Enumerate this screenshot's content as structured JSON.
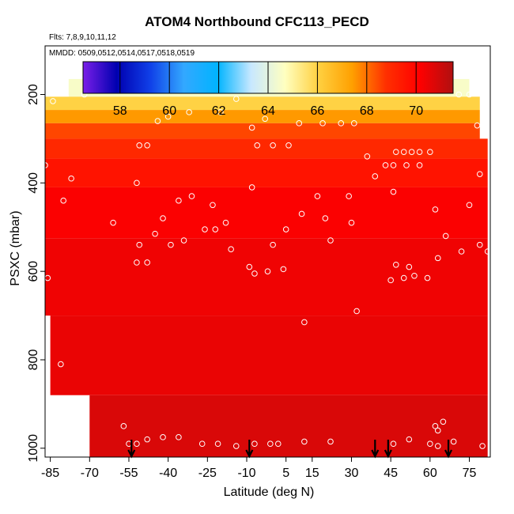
{
  "chart_data": {
    "type": "heatmap",
    "title": "ATOM4 Northbound CFC113_PECD",
    "subtitle_flights": "Flts: 7,8,9,10,11,12",
    "subtitle_dates": "MMDD: 0509,0512,0514,0517,0518,0519",
    "xlabel": "Latitude (deg N)",
    "ylabel": "PSXC (mbar)",
    "x_ticks": [
      -85,
      -70,
      -55,
      -40,
      -25,
      -10,
      5,
      15,
      30,
      45,
      60,
      75
    ],
    "y_ticks": [
      200,
      400,
      600,
      800,
      1000
    ],
    "xlim": [
      -87,
      83
    ],
    "ylim": [
      1020,
      90
    ],
    "colorbar": {
      "ticks": [
        58,
        60,
        62,
        64,
        66,
        68,
        70
      ],
      "range": [
        56.5,
        71.5
      ],
      "colors": [
        "#7a1fe8",
        "#0000b0",
        "#1040e8",
        "#33a8ff",
        "#00b4ff",
        "#c8e8ff",
        "#ffffc0",
        "#ffd040",
        "#ffa000",
        "#ff3000",
        "#ff0000",
        "#b01010"
      ]
    },
    "field_levels": [
      {
        "p": 190,
        "value": 64.5,
        "lat_from": -78,
        "lat_to": 75
      },
      {
        "p": 220,
        "value": 66.0,
        "lat_from": -87,
        "lat_to": 79
      },
      {
        "p": 250,
        "value": 67.5,
        "lat_from": -87,
        "lat_to": 79
      },
      {
        "p": 280,
        "value": 68.5,
        "lat_from": -87,
        "lat_to": 79
      },
      {
        "p": 320,
        "value": 69.0,
        "lat_from": -87,
        "lat_to": 82
      },
      {
        "p": 370,
        "value": 69.6,
        "lat_from": -87,
        "lat_to": 82
      },
      {
        "p": 450,
        "value": 70.2,
        "lat_from": -87,
        "lat_to": 82
      },
      {
        "p": 600,
        "value": 70.4,
        "lat_from": -87,
        "lat_to": 82
      },
      {
        "p": 800,
        "value": 70.5,
        "lat_from": -85,
        "lat_to": 82
      },
      {
        "p": 960,
        "value": 70.8,
        "lat_from": -70,
        "lat_to": 82
      }
    ],
    "sample_points": [
      {
        "lat": -84,
        "p": 215
      },
      {
        "lat": -72,
        "p": 200
      },
      {
        "lat": -68,
        "p": 185
      },
      {
        "lat": -63,
        "p": 188
      },
      {
        "lat": -57,
        "p": 188
      },
      {
        "lat": -44,
        "p": 260
      },
      {
        "lat": -40,
        "p": 250
      },
      {
        "lat": -32,
        "p": 240
      },
      {
        "lat": -20,
        "p": 240
      },
      {
        "lat": -14,
        "p": 210
      },
      {
        "lat": -8,
        "p": 275
      },
      {
        "lat": -3,
        "p": 255
      },
      {
        "lat": 10,
        "p": 265
      },
      {
        "lat": 19,
        "p": 265
      },
      {
        "lat": 26,
        "p": 265
      },
      {
        "lat": 31,
        "p": 265
      },
      {
        "lat": 41,
        "p": 185
      },
      {
        "lat": 71,
        "p": 200
      },
      {
        "lat": 75,
        "p": 200
      },
      {
        "lat": 78,
        "p": 270
      },
      {
        "lat": -51,
        "p": 315
      },
      {
        "lat": -48,
        "p": 315
      },
      {
        "lat": -6,
        "p": 315
      },
      {
        "lat": 0,
        "p": 315
      },
      {
        "lat": 6,
        "p": 315
      },
      {
        "lat": 36,
        "p": 340
      },
      {
        "lat": 43,
        "p": 360
      },
      {
        "lat": 47,
        "p": 330
      },
      {
        "lat": 50,
        "p": 330
      },
      {
        "lat": 53,
        "p": 330
      },
      {
        "lat": 56,
        "p": 330
      },
      {
        "lat": 60,
        "p": 330
      },
      {
        "lat": -87,
        "p": 360
      },
      {
        "lat": -77,
        "p": 390
      },
      {
        "lat": -52,
        "p": 400
      },
      {
        "lat": -8,
        "p": 410
      },
      {
        "lat": 39,
        "p": 385
      },
      {
        "lat": 46,
        "p": 360
      },
      {
        "lat": 51,
        "p": 360
      },
      {
        "lat": 56,
        "p": 360
      },
      {
        "lat": 79,
        "p": 380
      },
      {
        "lat": -80,
        "p": 440
      },
      {
        "lat": -36,
        "p": 440
      },
      {
        "lat": -31,
        "p": 430
      },
      {
        "lat": -23,
        "p": 450
      },
      {
        "lat": 17,
        "p": 430
      },
      {
        "lat": 29,
        "p": 430
      },
      {
        "lat": 46,
        "p": 420
      },
      {
        "lat": 62,
        "p": 460
      },
      {
        "lat": 75,
        "p": 450
      },
      {
        "lat": -61,
        "p": 490
      },
      {
        "lat": -42,
        "p": 480
      },
      {
        "lat": -18,
        "p": 490
      },
      {
        "lat": 11,
        "p": 470
      },
      {
        "lat": 20,
        "p": 480
      },
      {
        "lat": 30,
        "p": 490
      },
      {
        "lat": -51,
        "p": 540
      },
      {
        "lat": -45,
        "p": 515
      },
      {
        "lat": -39,
        "p": 540
      },
      {
        "lat": -34,
        "p": 530
      },
      {
        "lat": -26,
        "p": 505
      },
      {
        "lat": -22,
        "p": 505
      },
      {
        "lat": -16,
        "p": 550
      },
      {
        "lat": 0,
        "p": 540
      },
      {
        "lat": 5,
        "p": 505
      },
      {
        "lat": 22,
        "p": 530
      },
      {
        "lat": 63,
        "p": 570
      },
      {
        "lat": 66,
        "p": 520
      },
      {
        "lat": 72,
        "p": 555
      },
      {
        "lat": 79,
        "p": 540
      },
      {
        "lat": 82,
        "p": 555
      },
      {
        "lat": -52,
        "p": 580
      },
      {
        "lat": -48,
        "p": 580
      },
      {
        "lat": -9,
        "p": 590
      },
      {
        "lat": -7,
        "p": 605
      },
      {
        "lat": -2,
        "p": 600
      },
      {
        "lat": 4,
        "p": 595
      },
      {
        "lat": 47,
        "p": 585
      },
      {
        "lat": 52,
        "p": 590
      },
      {
        "lat": 45,
        "p": 620
      },
      {
        "lat": 50,
        "p": 615
      },
      {
        "lat": 54,
        "p": 610
      },
      {
        "lat": 59,
        "p": 615
      },
      {
        "lat": -86,
        "p": 615
      },
      {
        "lat": 12,
        "p": 715
      },
      {
        "lat": 32,
        "p": 690
      },
      {
        "lat": -81,
        "p": 810
      },
      {
        "lat": -57,
        "p": 950
      },
      {
        "lat": -55,
        "p": 990
      },
      {
        "lat": -52,
        "p": 990
      },
      {
        "lat": -48,
        "p": 980
      },
      {
        "lat": -42,
        "p": 975
      },
      {
        "lat": -36,
        "p": 975
      },
      {
        "lat": -27,
        "p": 990
      },
      {
        "lat": -21,
        "p": 990
      },
      {
        "lat": -14,
        "p": 995
      },
      {
        "lat": -7,
        "p": 990
      },
      {
        "lat": -1,
        "p": 990
      },
      {
        "lat": 2,
        "p": 990
      },
      {
        "lat": 12,
        "p": 985
      },
      {
        "lat": 22,
        "p": 985
      },
      {
        "lat": 46,
        "p": 990
      },
      {
        "lat": 52,
        "p": 980
      },
      {
        "lat": 60,
        "p": 990
      },
      {
        "lat": 62,
        "p": 950
      },
      {
        "lat": 63,
        "p": 960
      },
      {
        "lat": 65,
        "p": 940
      },
      {
        "lat": 63,
        "p": 995
      },
      {
        "lat": 69,
        "p": 985
      },
      {
        "lat": 80,
        "p": 995
      }
    ],
    "flight_arrows_lat": [
      -54,
      -9,
      39,
      44,
      67
    ]
  }
}
